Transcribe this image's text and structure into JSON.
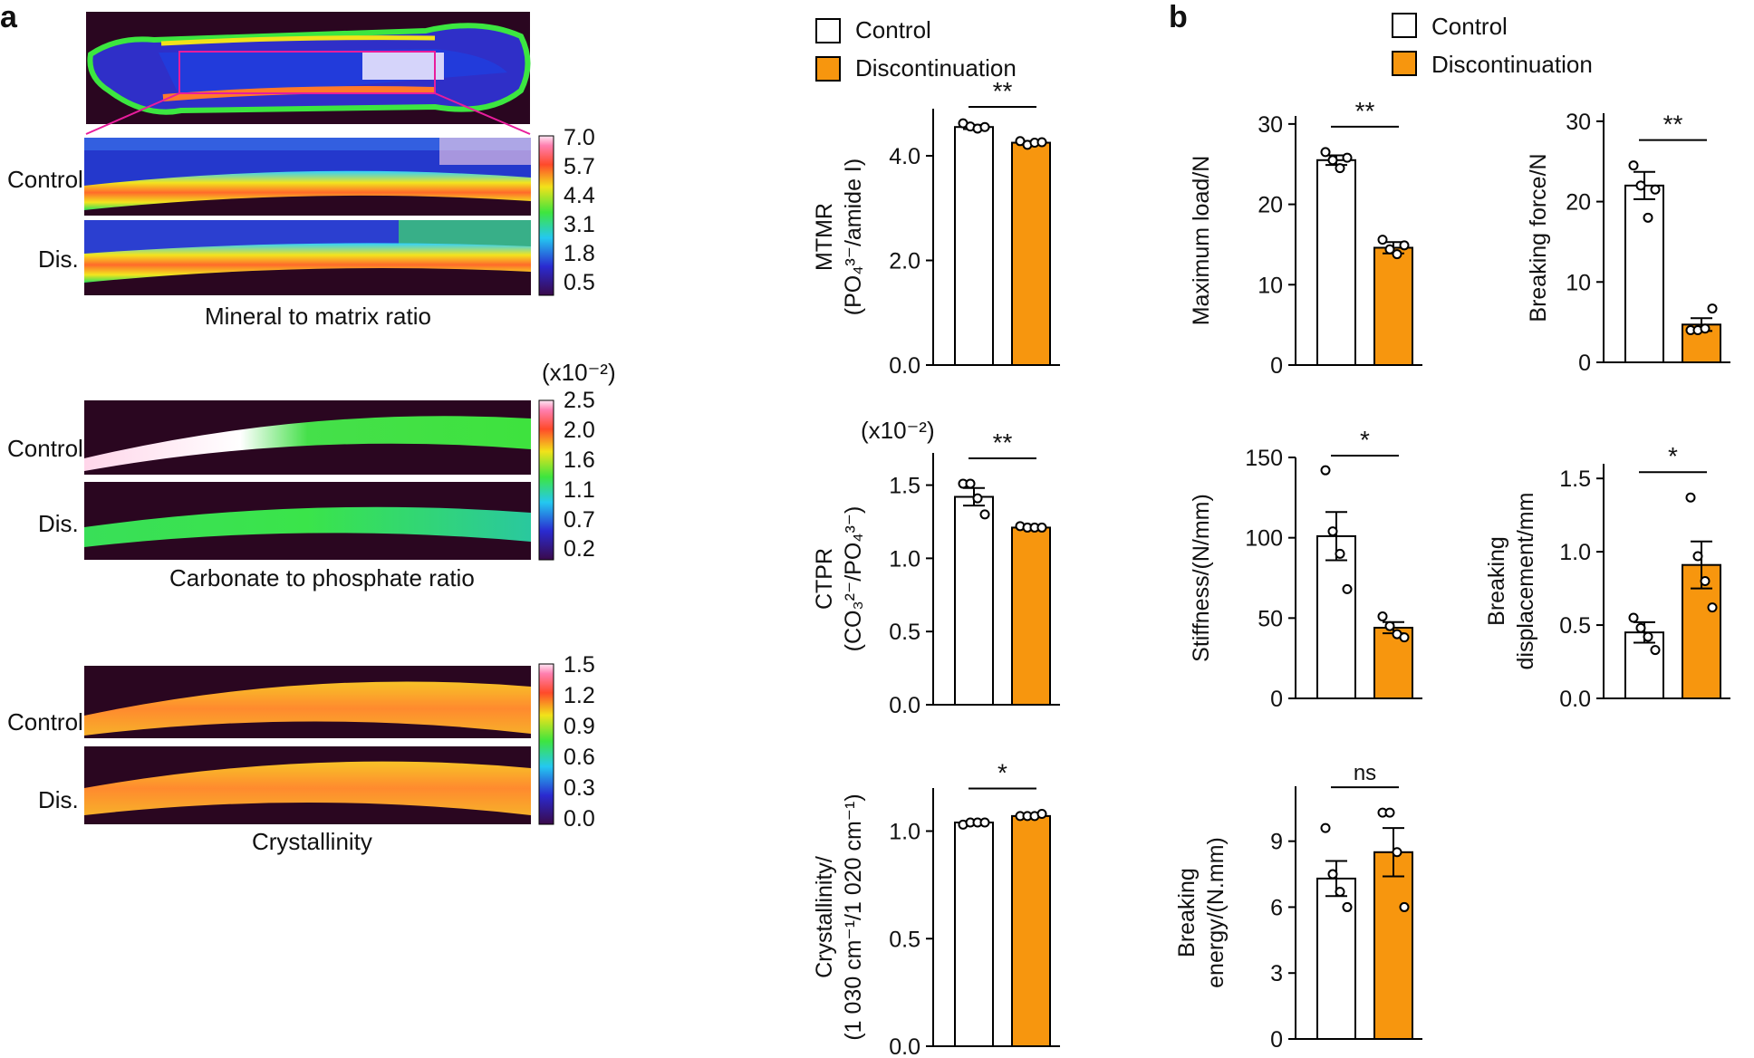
{
  "panels": {
    "a": "a",
    "b": "b"
  },
  "legend": {
    "control": "Control",
    "discontinuation": "Discontinuation"
  },
  "colors": {
    "control_fill": "#ffffff",
    "discontinuation_fill": "#f7960e",
    "bone_background": "#2a0620",
    "magenta_outline": "#e81d9c"
  },
  "images": {
    "mtmr": {
      "caption": "Mineral to matrix ratio",
      "row1": "Control",
      "row2": "Dis.",
      "colorbar_ticks": [
        "7.0",
        "5.7",
        "4.4",
        "3.1",
        "1.8",
        "0.5"
      ]
    },
    "ctpr": {
      "caption": "Carbonate to phosphate ratio",
      "row1": "Control",
      "row2": "Dis.",
      "colorbar_unit": "(x10⁻²)",
      "colorbar_ticks": [
        "2.5",
        "2.0",
        "1.6",
        "1.1",
        "0.7",
        "0.2"
      ]
    },
    "cryst": {
      "caption": "Crystallinity",
      "row1": "Control",
      "row2": "Dis.",
      "colorbar_ticks": [
        "1.5",
        "1.2",
        "0.9",
        "0.6",
        "0.3",
        "0.0"
      ]
    }
  },
  "chart_data": [
    {
      "type": "bar",
      "ylabel_line1": "MTMR",
      "ylabel_line2": "(PO₄³⁻/amide I)",
      "ylim": [
        0,
        4.9
      ],
      "ticks": [
        "0.0",
        "2.0",
        "4.0"
      ],
      "tick_values": [
        0,
        2,
        4
      ],
      "series": [
        {
          "name": "Control",
          "values": [
            4.55
          ],
          "error": [
            0.04
          ],
          "points": [
            4.62,
            4.56,
            4.52,
            4.55
          ]
        },
        {
          "name": "Discontinuation",
          "values": [
            4.25
          ],
          "error": [
            0.03
          ],
          "points": [
            4.28,
            4.21,
            4.25,
            4.26
          ]
        }
      ],
      "significance": "**"
    },
    {
      "type": "bar",
      "ylabel_line1": "CTPR",
      "ylabel_line2": "(CO₃²⁻/PO₄³⁻)",
      "unit_note": "(x10⁻²)",
      "ylim": [
        0,
        1.72
      ],
      "ticks": [
        "0.0",
        "0.5",
        "1.0",
        "1.5"
      ],
      "tick_values": [
        0,
        0.5,
        1.0,
        1.5
      ],
      "series": [
        {
          "name": "Control",
          "values": [
            1.42
          ],
          "error": [
            0.06
          ],
          "points": [
            1.51,
            1.51,
            1.41,
            1.3
          ]
        },
        {
          "name": "Discontinuation",
          "values": [
            1.21
          ],
          "error": [
            0.01
          ],
          "points": [
            1.22,
            1.21,
            1.21,
            1.21
          ]
        }
      ],
      "significance": "**"
    },
    {
      "type": "bar",
      "ylabel_line1": "Crystallinity/",
      "ylabel_line2": "(1 030 cm⁻¹/1 020 cm⁻¹)",
      "ylim": [
        0,
        1.2
      ],
      "ticks": [
        "0.0",
        "0.5",
        "1.0"
      ],
      "tick_values": [
        0,
        0.5,
        1.0
      ],
      "series": [
        {
          "name": "Control",
          "values": [
            1.04
          ],
          "error": [
            0.005
          ],
          "points": [
            1.03,
            1.04,
            1.04,
            1.04
          ]
        },
        {
          "name": "Discontinuation",
          "values": [
            1.07
          ],
          "error": [
            0.004
          ],
          "points": [
            1.07,
            1.07,
            1.07,
            1.08
          ]
        }
      ],
      "significance": "*"
    },
    {
      "type": "bar",
      "ylabel_line1": "Maximum load/N",
      "ylabel_line2": "",
      "ylim": [
        0,
        31
      ],
      "ticks": [
        "0",
        "10",
        "20",
        "30"
      ],
      "tick_values": [
        0,
        10,
        20,
        30
      ],
      "series": [
        {
          "name": "Control",
          "values": [
            25.5
          ],
          "error": [
            0.6
          ],
          "points": [
            26.5,
            25.5,
            24.5,
            25.8
          ]
        },
        {
          "name": "Discontinuation",
          "values": [
            14.6
          ],
          "error": [
            0.7
          ],
          "points": [
            15.6,
            14.4,
            13.8,
            14.9
          ]
        }
      ],
      "significance": "**"
    },
    {
      "type": "bar",
      "ylabel_line1": "Breaking force/N",
      "ylabel_line2": "",
      "ylim": [
        0,
        31
      ],
      "ticks": [
        "0",
        "10",
        "20",
        "30"
      ],
      "tick_values": [
        0,
        10,
        20,
        30
      ],
      "series": [
        {
          "name": "Control",
          "values": [
            22.0
          ],
          "error": [
            1.7
          ],
          "points": [
            24.5,
            22.0,
            18.0,
            21.5
          ]
        },
        {
          "name": "Discontinuation",
          "values": [
            4.7
          ],
          "error": [
            0.8
          ],
          "points": [
            4.0,
            4.0,
            4.2,
            6.7
          ]
        }
      ],
      "significance": "**"
    },
    {
      "type": "bar",
      "ylabel_line1": "Stiffness/(N/mm)",
      "ylabel_line2": "",
      "ylim": [
        0,
        150
      ],
      "ticks": [
        "0",
        "50",
        "100",
        "150"
      ],
      "tick_values": [
        0,
        50,
        100,
        150
      ],
      "series": [
        {
          "name": "Control",
          "values": [
            101
          ],
          "error": [
            15
          ],
          "points": [
            142,
            104,
            90,
            68
          ]
        },
        {
          "name": "Discontinuation",
          "values": [
            44
          ],
          "error": [
            3.5
          ],
          "points": [
            51,
            45,
            40,
            38
          ]
        }
      ],
      "significance": "*"
    },
    {
      "type": "bar",
      "ylabel_line1": "Breaking",
      "ylabel_line2": "displacement/mm",
      "ylim": [
        0,
        1.6
      ],
      "ticks": [
        "0.0",
        "0.5",
        "1.0",
        "1.5"
      ],
      "tick_values": [
        0,
        0.5,
        1.0,
        1.5
      ],
      "series": [
        {
          "name": "Control",
          "values": [
            0.45
          ],
          "error": [
            0.07
          ],
          "points": [
            0.55,
            0.48,
            0.42,
            0.33
          ]
        },
        {
          "name": "Discontinuation",
          "values": [
            0.91
          ],
          "error": [
            0.16
          ],
          "points": [
            1.37,
            0.97,
            0.8,
            0.62
          ]
        }
      ],
      "significance": "*"
    },
    {
      "type": "bar",
      "ylabel_line1": "Breaking",
      "ylabel_line2": "energy/(N.mm)",
      "ylim": [
        0,
        11.5
      ],
      "ticks": [
        "0",
        "3",
        "6",
        "9"
      ],
      "tick_values": [
        0,
        3,
        6,
        9
      ],
      "series": [
        {
          "name": "Control",
          "values": [
            7.3
          ],
          "error": [
            0.8
          ],
          "points": [
            9.6,
            7.5,
            6.7,
            6.0
          ]
        },
        {
          "name": "Discontinuation",
          "values": [
            8.5
          ],
          "error": [
            1.1
          ],
          "points": [
            10.3,
            10.3,
            8.5,
            6.0
          ]
        }
      ],
      "significance": "ns"
    }
  ]
}
